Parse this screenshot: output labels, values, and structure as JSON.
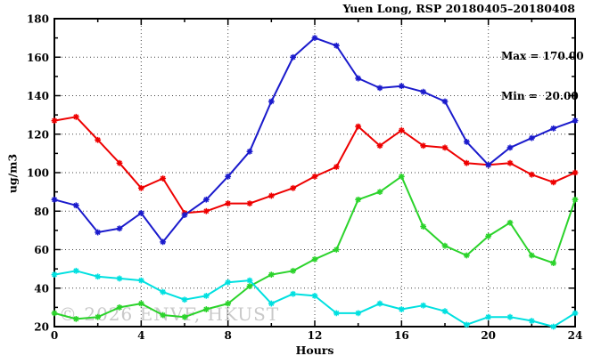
{
  "title": "Yuen Long, RSP 20180405–20180408",
  "stats": {
    "max_label": "Max = 170.00",
    "min_label": "Min =  20.00"
  },
  "watermark": "© 2026 ENVF, HKUST",
  "chart_data": {
    "type": "line",
    "title": "Yuen Long, RSP 20180405–20180408",
    "xlabel": "Hours",
    "ylabel": "ug/m3",
    "xlim": [
      0,
      24
    ],
    "ylim": [
      20,
      180
    ],
    "x_ticks": [
      0,
      4,
      8,
      12,
      16,
      20,
      24
    ],
    "y_ticks": [
      20,
      40,
      60,
      80,
      100,
      120,
      140,
      160,
      180
    ],
    "x_minor_step": 2,
    "y_minor_step": 10,
    "grid": true,
    "legend_position": "none",
    "annotations": {
      "max": 170.0,
      "min": 20.0
    },
    "marker": "star",
    "x": [
      0,
      1,
      2,
      3,
      4,
      5,
      6,
      7,
      8,
      9,
      10,
      11,
      12,
      13,
      14,
      15,
      16,
      17,
      18,
      19,
      20,
      21,
      22,
      23,
      24
    ],
    "series": [
      {
        "name": "red",
        "color": "#ee0000",
        "values": [
          127,
          129,
          117,
          105,
          92,
          97,
          79,
          80,
          84,
          84,
          88,
          92,
          98,
          103,
          124,
          114,
          122,
          114,
          113,
          105,
          104,
          105,
          99,
          95,
          100
        ]
      },
      {
        "name": "blue",
        "color": "#1a1acc",
        "values": [
          86,
          83,
          69,
          71,
          79,
          64,
          78,
          86,
          98,
          111,
          137,
          160,
          170,
          166,
          149,
          144,
          145,
          142,
          137,
          116,
          104,
          113,
          118,
          123,
          127
        ]
      },
      {
        "name": "green",
        "color": "#2bd32b",
        "values": [
          27,
          24,
          25,
          30,
          32,
          26,
          25,
          29,
          32,
          41,
          47,
          49,
          55,
          60,
          86,
          90,
          98,
          72,
          62,
          57,
          67,
          74,
          57,
          53,
          86
        ]
      },
      {
        "name": "cyan",
        "color": "#00e0e0",
        "values": [
          47,
          49,
          46,
          45,
          44,
          38,
          34,
          36,
          43,
          44,
          32,
          37,
          36,
          27,
          27,
          32,
          29,
          31,
          28,
          21,
          25,
          25,
          23,
          20,
          27
        ]
      }
    ]
  }
}
